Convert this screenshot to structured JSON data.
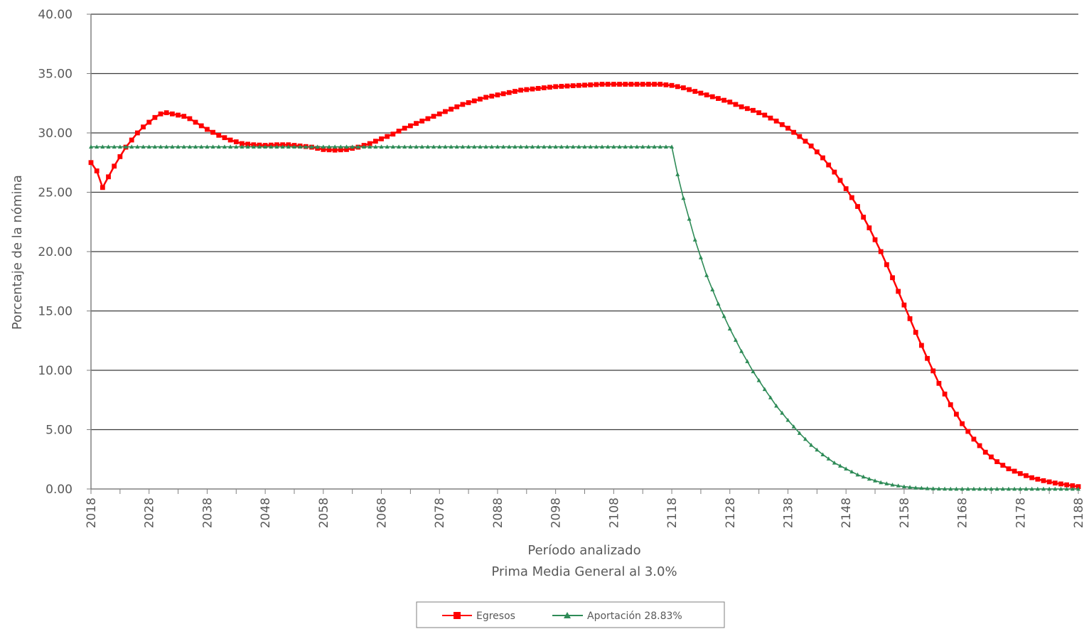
{
  "chart_data": {
    "type": "line",
    "xlabel": "Período analizado",
    "subtitle": "Prima Media General al 3.0%",
    "ylabel": "Porcentaje de la nómina",
    "xlim": [
      2018,
      2188
    ],
    "ylim": [
      0,
      40
    ],
    "x_ticks": [
      2018,
      2028,
      2038,
      2048,
      2058,
      2068,
      2078,
      2088,
      2098,
      2108,
      2118,
      2128,
      2138,
      2148,
      2158,
      2168,
      2178,
      2188
    ],
    "y_ticks": [
      "0.00",
      "5.00",
      "10.00",
      "15.00",
      "20.00",
      "25.00",
      "30.00",
      "35.00",
      "40.00"
    ],
    "grid": true,
    "legend_position": "bottom",
    "series": [
      {
        "name": "Egresos",
        "color": "#ff0000",
        "marker": "square",
        "points": [
          [
            2018,
            27.5
          ],
          [
            2019,
            26.8
          ],
          [
            2020,
            25.4
          ],
          [
            2021,
            26.3
          ],
          [
            2022,
            27.2
          ],
          [
            2023,
            28.0
          ],
          [
            2024,
            28.8
          ],
          [
            2025,
            29.4
          ],
          [
            2026,
            30.0
          ],
          [
            2027,
            30.5
          ],
          [
            2028,
            30.9
          ],
          [
            2029,
            31.3
          ],
          [
            2030,
            31.6
          ],
          [
            2031,
            31.7
          ],
          [
            2032,
            31.6
          ],
          [
            2033,
            31.5
          ],
          [
            2034,
            31.4
          ],
          [
            2035,
            31.2
          ],
          [
            2036,
            30.9
          ],
          [
            2037,
            30.6
          ],
          [
            2038,
            30.3
          ],
          [
            2040,
            29.8
          ],
          [
            2042,
            29.4
          ],
          [
            2044,
            29.1
          ],
          [
            2046,
            29.0
          ],
          [
            2048,
            28.95
          ],
          [
            2050,
            29.0
          ],
          [
            2052,
            29.0
          ],
          [
            2054,
            28.9
          ],
          [
            2056,
            28.8
          ],
          [
            2058,
            28.6
          ],
          [
            2060,
            28.55
          ],
          [
            2062,
            28.6
          ],
          [
            2064,
            28.8
          ],
          [
            2066,
            29.1
          ],
          [
            2068,
            29.5
          ],
          [
            2070,
            29.9
          ],
          [
            2072,
            30.4
          ],
          [
            2074,
            30.8
          ],
          [
            2076,
            31.2
          ],
          [
            2078,
            31.6
          ],
          [
            2080,
            32.0
          ],
          [
            2082,
            32.4
          ],
          [
            2084,
            32.7
          ],
          [
            2086,
            33.0
          ],
          [
            2088,
            33.2
          ],
          [
            2090,
            33.4
          ],
          [
            2092,
            33.6
          ],
          [
            2094,
            33.7
          ],
          [
            2096,
            33.8
          ],
          [
            2098,
            33.9
          ],
          [
            2100,
            33.95
          ],
          [
            2102,
            34.0
          ],
          [
            2104,
            34.05
          ],
          [
            2106,
            34.1
          ],
          [
            2108,
            34.1
          ],
          [
            2110,
            34.1
          ],
          [
            2112,
            34.1
          ],
          [
            2114,
            34.1
          ],
          [
            2116,
            34.1
          ],
          [
            2118,
            34.0
          ],
          [
            2120,
            33.8
          ],
          [
            2122,
            33.5
          ],
          [
            2124,
            33.2
          ],
          [
            2126,
            32.9
          ],
          [
            2128,
            32.6
          ],
          [
            2130,
            32.2
          ],
          [
            2132,
            31.9
          ],
          [
            2134,
            31.5
          ],
          [
            2136,
            31.0
          ],
          [
            2138,
            30.4
          ],
          [
            2140,
            29.7
          ],
          [
            2142,
            28.9
          ],
          [
            2144,
            27.9
          ],
          [
            2146,
            26.7
          ],
          [
            2148,
            25.3
          ],
          [
            2150,
            23.8
          ],
          [
            2152,
            22.0
          ],
          [
            2154,
            20.0
          ],
          [
            2156,
            17.8
          ],
          [
            2158,
            15.5
          ],
          [
            2160,
            13.2
          ],
          [
            2162,
            11.0
          ],
          [
            2164,
            8.9
          ],
          [
            2166,
            7.1
          ],
          [
            2168,
            5.5
          ],
          [
            2170,
            4.2
          ],
          [
            2172,
            3.1
          ],
          [
            2174,
            2.3
          ],
          [
            2176,
            1.7
          ],
          [
            2178,
            1.3
          ],
          [
            2180,
            0.95
          ],
          [
            2182,
            0.7
          ],
          [
            2184,
            0.5
          ],
          [
            2186,
            0.35
          ],
          [
            2188,
            0.2
          ]
        ]
      },
      {
        "name": "Aportación 28.83%",
        "color": "#2e8b57",
        "marker": "triangle",
        "points": [
          [
            2018,
            28.83
          ],
          [
            2118,
            28.83
          ],
          [
            2119,
            26.5
          ],
          [
            2120,
            24.5
          ],
          [
            2122,
            21.0
          ],
          [
            2124,
            18.0
          ],
          [
            2126,
            15.6
          ],
          [
            2128,
            13.5
          ],
          [
            2130,
            11.6
          ],
          [
            2132,
            9.9
          ],
          [
            2134,
            8.4
          ],
          [
            2136,
            7.0
          ],
          [
            2138,
            5.8
          ],
          [
            2140,
            4.7
          ],
          [
            2142,
            3.7
          ],
          [
            2144,
            2.9
          ],
          [
            2146,
            2.2
          ],
          [
            2148,
            1.7
          ],
          [
            2150,
            1.2
          ],
          [
            2152,
            0.85
          ],
          [
            2154,
            0.55
          ],
          [
            2156,
            0.35
          ],
          [
            2158,
            0.2
          ],
          [
            2160,
            0.1
          ],
          [
            2162,
            0.05
          ],
          [
            2164,
            0.02
          ],
          [
            2166,
            0.0
          ],
          [
            2188,
            0.0
          ]
        ]
      }
    ]
  }
}
